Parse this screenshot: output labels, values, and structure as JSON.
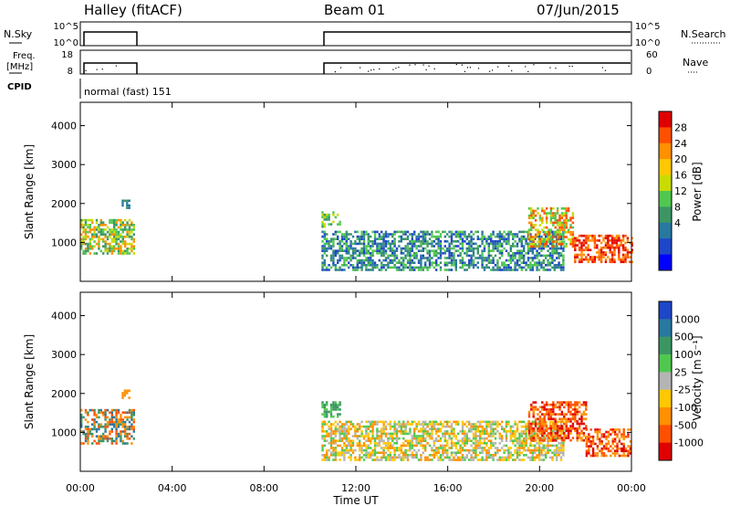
{
  "header": {
    "station": "Halley (fitACF)",
    "beam": "Beam 01",
    "date": "07/Jun/2015"
  },
  "summary_panels": {
    "nsky_label": "N.Sky",
    "nsearch_label": "N.Search",
    "nsky_ticks": [
      "10^5",
      "10^0"
    ],
    "nsearch_ticks": [
      "10^5",
      "10^0"
    ],
    "freq_label_1": "Freq.",
    "freq_label_2": "[MHz]",
    "freq_ticks": [
      "18",
      "8"
    ],
    "nave_label": "Nave",
    "nave_ticks": [
      "60",
      "0"
    ],
    "cpid_label": "CPID",
    "cpid_value": "normal (fast) 151"
  },
  "chart_data": [
    {
      "type": "heatmap",
      "quantity": "power",
      "ylabel": "Slant Range [km]",
      "xlabel": "Time UT",
      "x_ticks": [
        "00:00",
        "04:00",
        "08:00",
        "12:00",
        "16:00",
        "20:00",
        "00:00"
      ],
      "ylim": [
        0,
        4600
      ],
      "y_ticks": [
        1000,
        2000,
        3000,
        4000
      ],
      "colorbar": {
        "label": "Power [dB]",
        "ticks": [
          "28",
          "24",
          "20",
          "16",
          "12",
          "8",
          "4"
        ],
        "colors": [
          "#e00000",
          "#ff5000",
          "#ff9000",
          "#ffc800",
          "#c8dc00",
          "#50c850",
          "#3c9664",
          "#2878a0",
          "#1e46c8",
          "#0000ff"
        ]
      },
      "regions": [
        {
          "t0": 0.0,
          "t1": 2.3,
          "r0": 700,
          "r1": 1600,
          "dominant": [
            "#3c9664",
            "#50c850",
            "#c8dc00",
            "#ff9000"
          ]
        },
        {
          "t0": 1.8,
          "t1": 2.1,
          "r0": 1900,
          "r1": 2100,
          "dominant": [
            "#2878a0",
            "#3c9664"
          ]
        },
        {
          "t0": 10.5,
          "t1": 11.3,
          "r0": 1400,
          "r1": 1800,
          "dominant": [
            "#50c850",
            "#c8dc00",
            "#3c9664"
          ]
        },
        {
          "t0": 10.5,
          "t1": 21.0,
          "r0": 300,
          "r1": 1300,
          "dominant": [
            "#2878a0",
            "#3c9664",
            "#50c850",
            "#1e46c8"
          ]
        },
        {
          "t0": 19.5,
          "t1": 21.5,
          "r0": 900,
          "r1": 1900,
          "dominant": [
            "#50c850",
            "#c8dc00",
            "#ff9000",
            "#ff5000"
          ]
        },
        {
          "t0": 21.5,
          "t1": 24.0,
          "r0": 500,
          "r1": 1200,
          "dominant": [
            "#e00000",
            "#ff5000",
            "#ff9000"
          ]
        }
      ]
    },
    {
      "type": "heatmap",
      "quantity": "velocity",
      "ylabel": "Slant Range [km]",
      "xlabel": "Time UT",
      "x_ticks": [
        "00:00",
        "04:00",
        "08:00",
        "12:00",
        "16:00",
        "20:00",
        "00:00"
      ],
      "ylim": [
        0,
        4600
      ],
      "y_ticks": [
        1000,
        2000,
        3000,
        4000
      ],
      "colorbar": {
        "label": "Velocity [m s⁻¹]",
        "ticks": [
          "1000",
          "500",
          "100",
          "25",
          "-25",
          "-100",
          "-500",
          "-1000"
        ],
        "colors": [
          "#1e46c8",
          "#2878a0",
          "#3c9664",
          "#50c850",
          "#b4b4b4",
          "#ffc800",
          "#ff9000",
          "#ff5000",
          "#e00000"
        ]
      },
      "regions": [
        {
          "t0": 0.0,
          "t1": 2.3,
          "r0": 700,
          "r1": 1600,
          "dominant": [
            "#ff5000",
            "#ff9000",
            "#3c9664",
            "#2878a0"
          ]
        },
        {
          "t0": 1.8,
          "t1": 2.1,
          "r0": 1900,
          "r1": 2100,
          "dominant": [
            "#ff9000"
          ]
        },
        {
          "t0": 10.5,
          "t1": 11.3,
          "r0": 1400,
          "r1": 1800,
          "dominant": [
            "#50c850",
            "#3c9664"
          ]
        },
        {
          "t0": 10.5,
          "t1": 21.0,
          "r0": 300,
          "r1": 1300,
          "dominant": [
            "#ffc800",
            "#b4b4b4",
            "#ff9000",
            "#50c850"
          ]
        },
        {
          "t0": 19.5,
          "t1": 22.0,
          "r0": 800,
          "r1": 1800,
          "dominant": [
            "#ff5000",
            "#e00000",
            "#ff9000"
          ]
        },
        {
          "t0": 22.0,
          "t1": 24.0,
          "r0": 400,
          "r1": 1100,
          "dominant": [
            "#ff5000",
            "#e00000",
            "#ff9000"
          ]
        }
      ]
    }
  ],
  "operation_intervals": [
    [
      0.0,
      2.3
    ],
    [
      10.5,
      24.0
    ]
  ]
}
